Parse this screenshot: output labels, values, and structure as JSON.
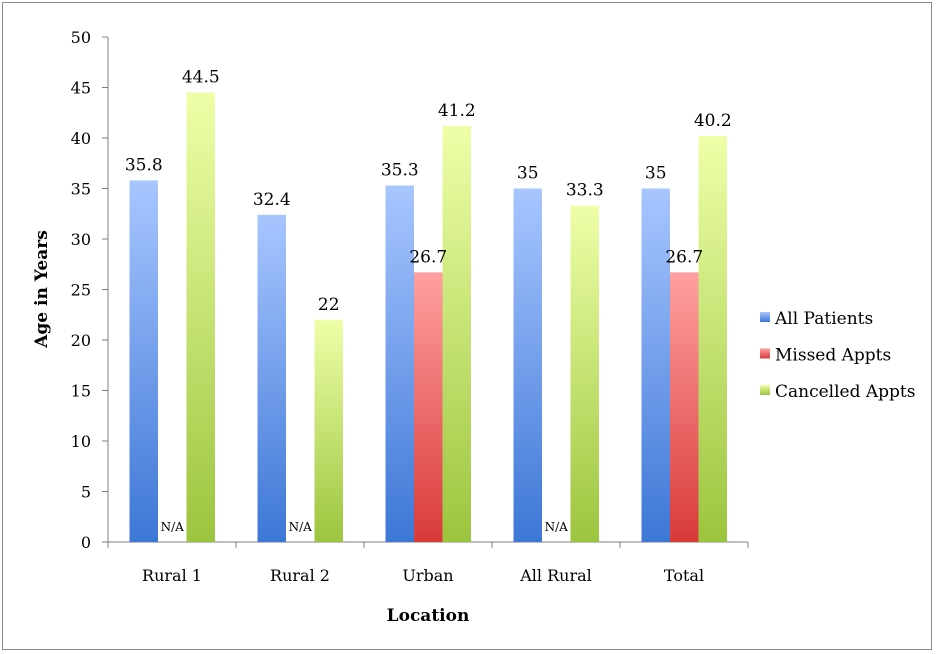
{
  "chart_data": {
    "type": "bar",
    "categories": [
      "Rural 1",
      "Rural 2",
      "Urban",
      "All Rural",
      "Total"
    ],
    "series": [
      {
        "name": "All Patients",
        "values": [
          35.8,
          32.4,
          35.3,
          35,
          35
        ],
        "labels": [
          "35.8",
          "32.4",
          "35.3",
          "35",
          "35"
        ]
      },
      {
        "name": "Missed Appts",
        "values": [
          null,
          null,
          26.7,
          null,
          26.7
        ],
        "labels": [
          "N/A",
          "N/A",
          "26.7",
          "N/A",
          "26.7"
        ]
      },
      {
        "name": "Cancelled Appts",
        "values": [
          44.5,
          22,
          41.2,
          33.3,
          40.2
        ],
        "labels": [
          "44.5",
          "22",
          "41.2",
          "33.3",
          "40.2"
        ]
      }
    ],
    "xlabel": "Location",
    "ylabel": "Age in Years",
    "ylim": [
      0,
      50
    ],
    "yticks": [
      0,
      5,
      10,
      15,
      20,
      25,
      30,
      35,
      40,
      45,
      50
    ],
    "grid": false,
    "legend_position": "right",
    "colors": {
      "All Patients": {
        "top": "#a8c6ff",
        "bottom": "#3d77d6"
      },
      "Missed Appts": {
        "top": "#ffa0a0",
        "bottom": "#d93a3a"
      },
      "Cancelled Appts": {
        "top": "#eeffa8",
        "bottom": "#9cc53e"
      }
    }
  }
}
